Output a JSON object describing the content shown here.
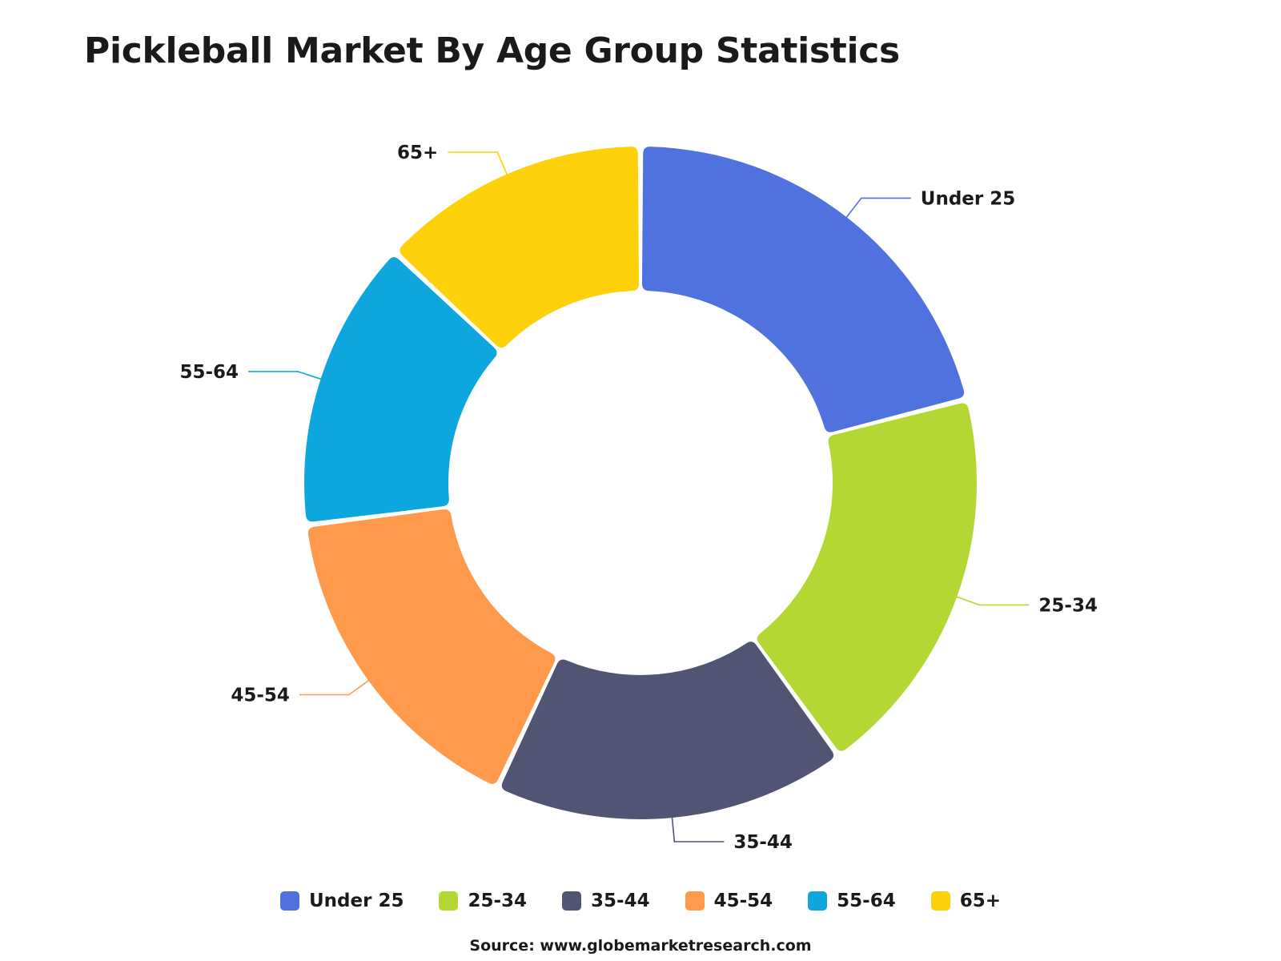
{
  "page": {
    "title": "Pickleball Market By Age Group Statistics",
    "source": "Source: www.globemarketresearch.com"
  },
  "chart_data": {
    "type": "pie",
    "variant": "donut",
    "title": "Pickleball Market By Age Group Statistics",
    "legend_position": "bottom",
    "categories": [
      "Under 25",
      "25-34",
      "35-44",
      "45-54",
      "55-64",
      "65+"
    ],
    "values": [
      21,
      19,
      17,
      16,
      14,
      13
    ],
    "colors": [
      "#5072DE",
      "#B5D733",
      "#515473",
      "#FF9A4D",
      "#0EA7DD",
      "#FED10A"
    ]
  }
}
